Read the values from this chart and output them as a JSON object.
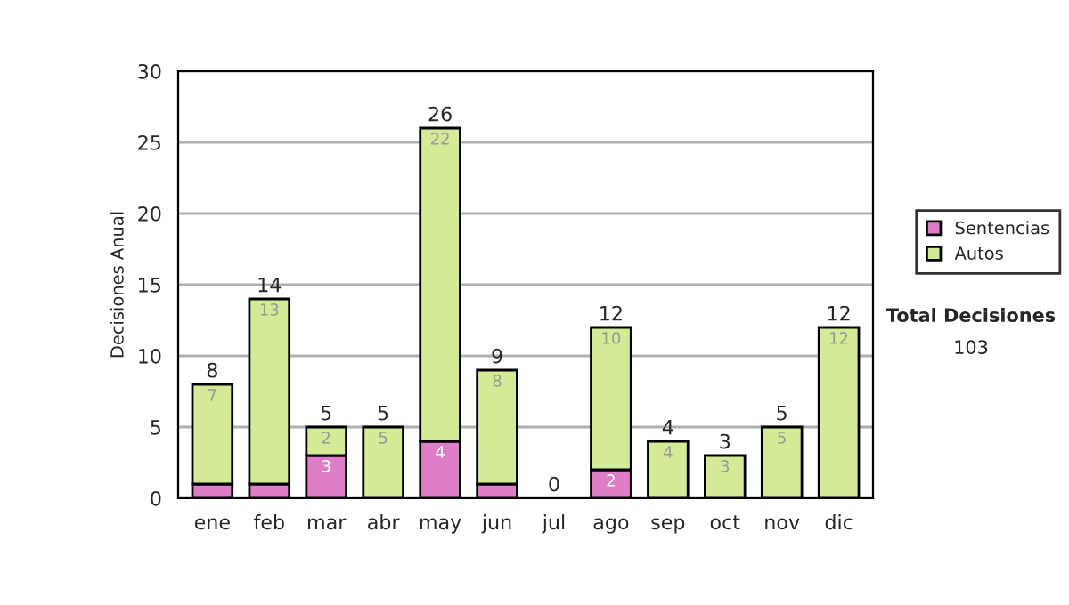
{
  "chart_data": {
    "type": "bar",
    "stacked": true,
    "ylabel": "Decisiones Anual",
    "categories": [
      "ene",
      "feb",
      "mar",
      "abr",
      "may",
      "jun",
      "jul",
      "ago",
      "sep",
      "oct",
      "nov",
      "dic"
    ],
    "series": [
      {
        "name": "Sentencias",
        "color": "#de7ec6",
        "values": [
          1,
          1,
          3,
          0,
          4,
          1,
          0,
          2,
          0,
          0,
          0,
          0
        ],
        "value_labels": [
          null,
          null,
          "3",
          null,
          "4",
          null,
          null,
          "2",
          null,
          null,
          null,
          null
        ]
      },
      {
        "name": "Autos",
        "color": "#d3eb97",
        "values": [
          7,
          13,
          2,
          5,
          22,
          8,
          0,
          10,
          4,
          3,
          5,
          12
        ],
        "value_labels": [
          "7",
          "13",
          "2",
          "5",
          "22",
          "8",
          null,
          "10",
          "4",
          "3",
          "5",
          "12"
        ]
      }
    ],
    "totals": [
      "8",
      "14",
      "5",
      "5",
      "26",
      "9",
      "0",
      "12",
      "4",
      "3",
      "5",
      "12"
    ],
    "ylim": [
      0,
      30
    ],
    "yticks": [
      0,
      5,
      10,
      15,
      20,
      25,
      30
    ],
    "grid": "y",
    "legend": "right",
    "annotations": [
      "Total Decisiones",
      "103"
    ]
  }
}
